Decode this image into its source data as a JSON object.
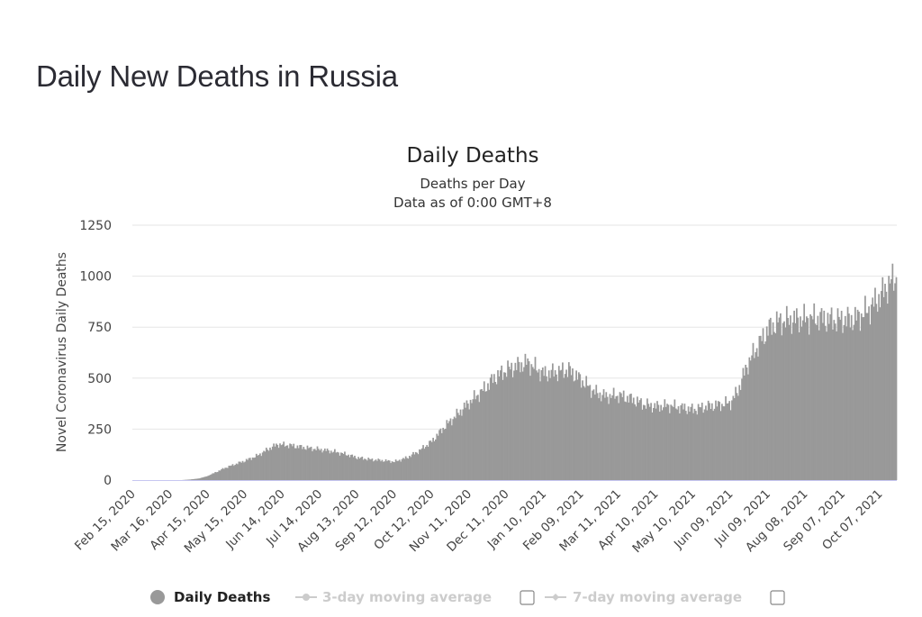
{
  "page": {
    "title": "Daily New Deaths in Russia"
  },
  "colors": {
    "bars": "#999999",
    "grid": "#e6e6e6",
    "legend_active": "#222222",
    "legend_inactive": "#cccccc",
    "mar16_marker": "#5b5bd6"
  },
  "legend": [
    {
      "label": "Daily Deaths",
      "icon": "filled-circle-icon",
      "active": true
    },
    {
      "label": "3-day moving average",
      "icon": "line-marker-icon",
      "active": false
    },
    {
      "label": "7-day moving average",
      "icon": "line-marker-icon",
      "active": false
    }
  ],
  "chart_data": {
    "type": "bar",
    "title": "Daily Deaths",
    "subtitle_lines": [
      "Deaths per Day",
      "Data as of 0:00 GMT+8"
    ],
    "ylabel": "Novel Coronavirus Daily Deaths",
    "xlabel": "",
    "ylim": [
      0,
      1250
    ],
    "yticks": [
      0,
      250,
      500,
      750,
      1000,
      1250
    ],
    "grid": true,
    "legend_position": "bottom",
    "x_tick_labels": [
      "Feb 15, 2020",
      "Mar 16, 2020",
      "Apr 15, 2020",
      "May 15, 2020",
      "Jun 14, 2020",
      "Jul 14, 2020",
      "Aug 13, 2020",
      "Sep 12, 2020",
      "Oct 12, 2020",
      "Nov 11, 2020",
      "Dec 11, 2020",
      "Jan 10, 2021",
      "Feb 09, 2021",
      "Mar 11, 2021",
      "Apr 10, 2021",
      "May 10, 2021",
      "Jun 09, 2021",
      "Jul 09, 2021",
      "Aug 08, 2021",
      "Sep 07, 2021",
      "Oct 07, 2021"
    ],
    "start_date": "Feb 15, 2020",
    "end_date": "Oct 20, 2021",
    "series": [
      {
        "name": "Daily Deaths",
        "points": [
          [
            "Feb 15, 2020",
            0
          ],
          [
            "Mar 25, 2020",
            0
          ],
          [
            "Apr 01, 2020",
            3
          ],
          [
            "Apr 08, 2020",
            8
          ],
          [
            "Apr 15, 2020",
            20
          ],
          [
            "Apr 22, 2020",
            40
          ],
          [
            "Apr 29, 2020",
            60
          ],
          [
            "May 08, 2020",
            80
          ],
          [
            "May 15, 2020",
            95
          ],
          [
            "May 25, 2020",
            120
          ],
          [
            "Jun 02, 2020",
            150
          ],
          [
            "Jun 10, 2020",
            175
          ],
          [
            "Jun 20, 2020",
            170
          ],
          [
            "Jul 01, 2020",
            160
          ],
          [
            "Jul 14, 2020",
            150
          ],
          [
            "Jul 25, 2020",
            140
          ],
          [
            "Aug 05, 2020",
            125
          ],
          [
            "Aug 13, 2020",
            110
          ],
          [
            "Aug 25, 2020",
            100
          ],
          [
            "Sep 05, 2020",
            95
          ],
          [
            "Sep 12, 2020",
            90
          ],
          [
            "Sep 22, 2020",
            110
          ],
          [
            "Oct 01, 2020",
            140
          ],
          [
            "Oct 12, 2020",
            190
          ],
          [
            "Oct 22, 2020",
            260
          ],
          [
            "Nov 01, 2020",
            320
          ],
          [
            "Nov 11, 2020",
            380
          ],
          [
            "Nov 22, 2020",
            440
          ],
          [
            "Dec 01, 2020",
            500
          ],
          [
            "Dec 11, 2020",
            540
          ],
          [
            "Dec 20, 2020",
            560
          ],
          [
            "Dec 28, 2020",
            575
          ],
          [
            "Jan 10, 2021",
            520
          ],
          [
            "Jan 20, 2021",
            530
          ],
          [
            "Jan 30, 2021",
            540
          ],
          [
            "Feb 09, 2021",
            490
          ],
          [
            "Feb 20, 2021",
            430
          ],
          [
            "Mar 01, 2021",
            410
          ],
          [
            "Mar 11, 2021",
            415
          ],
          [
            "Mar 20, 2021",
            400
          ],
          [
            "Apr 01, 2021",
            370
          ],
          [
            "Apr 10, 2021",
            360
          ],
          [
            "Apr 20, 2021",
            365
          ],
          [
            "May 01, 2021",
            355
          ],
          [
            "May 10, 2021",
            345
          ],
          [
            "May 20, 2021",
            360
          ],
          [
            "Jun 01, 2021",
            370
          ],
          [
            "Jun 09, 2021",
            380
          ],
          [
            "Jun 15, 2021",
            440
          ],
          [
            "Jun 22, 2021",
            560
          ],
          [
            "Jul 01, 2021",
            660
          ],
          [
            "Jul 09, 2021",
            740
          ],
          [
            "Jul 17, 2021",
            775
          ],
          [
            "Jul 28, 2021",
            785
          ],
          [
            "Aug 08, 2021",
            790
          ],
          [
            "Aug 18, 2021",
            795
          ],
          [
            "Aug 28, 2021",
            785
          ],
          [
            "Sep 07, 2021",
            785
          ],
          [
            "Sep 17, 2021",
            790
          ],
          [
            "Sep 27, 2021",
            830
          ],
          [
            "Oct 07, 2021",
            900
          ],
          [
            "Oct 14, 2021",
            960
          ],
          [
            "Oct 20, 2021",
            995
          ]
        ]
      }
    ]
  }
}
